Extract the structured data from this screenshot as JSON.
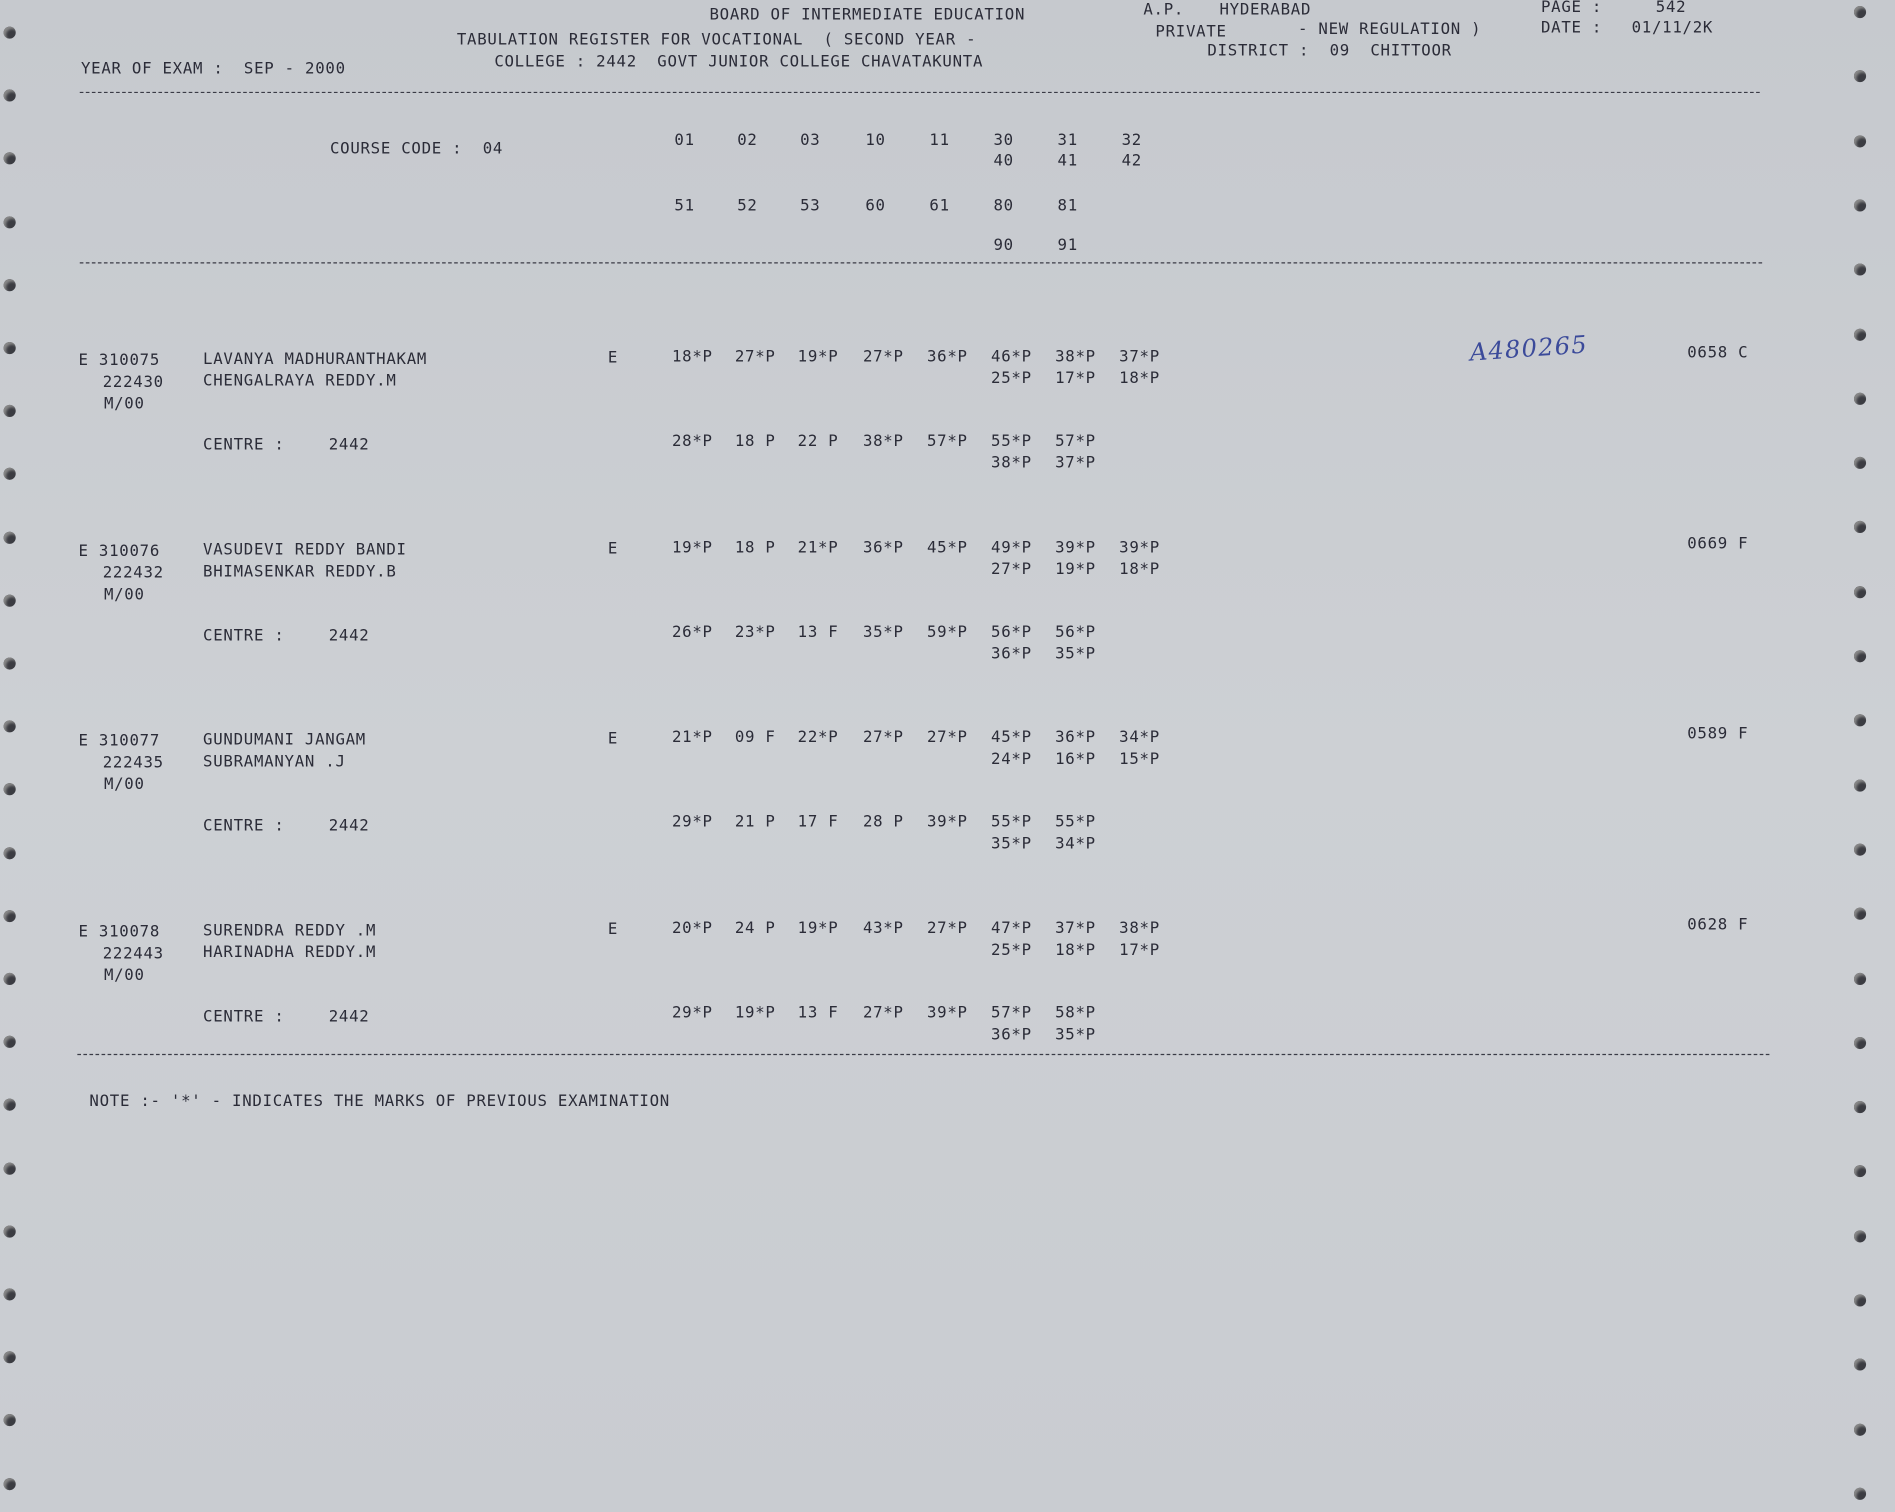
{
  "header": {
    "board": "BOARD OF INTERMEDIATE EDUCATION",
    "state": "A.P.",
    "city": "HYDERABAD",
    "page_label": "PAGE :",
    "page_number": "542",
    "register_title": "TABULATION REGISTER FOR VOCATIONAL  ( SECOND YEAR -",
    "category": "PRIVATE",
    "regulation": "- NEW REGULATION )",
    "date_label": "DATE :",
    "date": "01/11/2K",
    "year_of_exam": "YEAR OF EXAM :  SEP - 2000",
    "college": "COLLEGE : 2442  GOVT JUNIOR COLLEGE CHAVATAKUNTA",
    "district": "DISTRICT :  09  CHITTOOR"
  },
  "course": {
    "label": "COURSE CODE :  04",
    "rows": [
      [
        "01",
        "02",
        "03",
        "10",
        "11",
        "30",
        "31",
        "32"
      ],
      [
        "",
        "",
        "",
        "",
        "",
        "40",
        "41",
        "42"
      ],
      [
        "51",
        "52",
        "53",
        "60",
        "61",
        "80",
        "81"
      ],
      [
        "",
        "",
        "",
        "",
        "",
        "90",
        "91"
      ]
    ]
  },
  "records": [
    {
      "prefix": "E 310075",
      "reg": "222430",
      "sex": "M/00",
      "name": "LAVANYA MADHURANTHAKAM",
      "father": "CHENGALRAYA REDDY.M",
      "stream": "E",
      "marks1": [
        "18*P",
        "27*P",
        "19*P",
        "27*P",
        "36*P",
        "46*P",
        "38*P",
        "37*P"
      ],
      "marks2": [
        "25*P",
        "17*P",
        "18*P"
      ],
      "centre_label": "CENTRE :",
      "centre": "2442",
      "marks3": [
        "28*P",
        "18 P",
        "22 P",
        "38*P",
        "57*P",
        "55*P",
        "57*P"
      ],
      "marks4": [
        "38*P",
        "37*P"
      ],
      "total": "0658 C",
      "handwritten": "A480265"
    },
    {
      "prefix": "E 310076",
      "reg": "222432",
      "sex": "M/00",
      "name": "VASUDEVI REDDY BANDI",
      "father": "BHIMASENKAR REDDY.B",
      "stream": "E",
      "marks1": [
        "19*P",
        "18 P",
        "21*P",
        "36*P",
        "45*P",
        "49*P",
        "39*P",
        "39*P"
      ],
      "marks2": [
        "27*P",
        "19*P",
        "18*P"
      ],
      "centre_label": "CENTRE :",
      "centre": "2442",
      "marks3": [
        "26*P",
        "23*P",
        "13 F",
        "35*P",
        "59*P",
        "56*P",
        "56*P"
      ],
      "marks4": [
        "36*P",
        "35*P"
      ],
      "total": "0669 F"
    },
    {
      "prefix": "E 310077",
      "reg": "222435",
      "sex": "M/00",
      "name": "GUNDUMANI JANGAM",
      "father": "SUBRAMANYAN .J",
      "stream": "E",
      "marks1": [
        "21*P",
        "09 F",
        "22*P",
        "27*P",
        "27*P",
        "45*P",
        "36*P",
        "34*P"
      ],
      "marks2": [
        "24*P",
        "16*P",
        "15*P"
      ],
      "centre_label": "CENTRE :",
      "centre": "2442",
      "marks3": [
        "29*P",
        "21 P",
        "17 F",
        "28 P",
        "39*P",
        "55*P",
        "55*P"
      ],
      "marks4": [
        "35*P",
        "34*P"
      ],
      "total": "0589 F"
    },
    {
      "prefix": "E 310078",
      "reg": "222443",
      "sex": "M/00",
      "name": "SURENDRA REDDY .M",
      "father": "HARINADHA REDDY.M",
      "stream": "E",
      "marks1": [
        "20*P",
        "24 P",
        "19*P",
        "43*P",
        "27*P",
        "47*P",
        "37*P",
        "38*P"
      ],
      "marks2": [
        "25*P",
        "18*P",
        "17*P"
      ],
      "centre_label": "CENTRE :",
      "centre": "2442",
      "marks3": [
        "29*P",
        "19*P",
        "13 F",
        "27*P",
        "39*P",
        "57*P",
        "58*P"
      ],
      "marks4": [
        "36*P",
        "35*P"
      ],
      "total": "0628 F"
    }
  ],
  "note": "NOTE :- '*' - INDICATES THE MARKS OF PREVIOUS EXAMINATION",
  "colors": {
    "paper": "#c9ccd1",
    "ink": "#2b2c38",
    "handwriting": "#3b4a9a"
  }
}
